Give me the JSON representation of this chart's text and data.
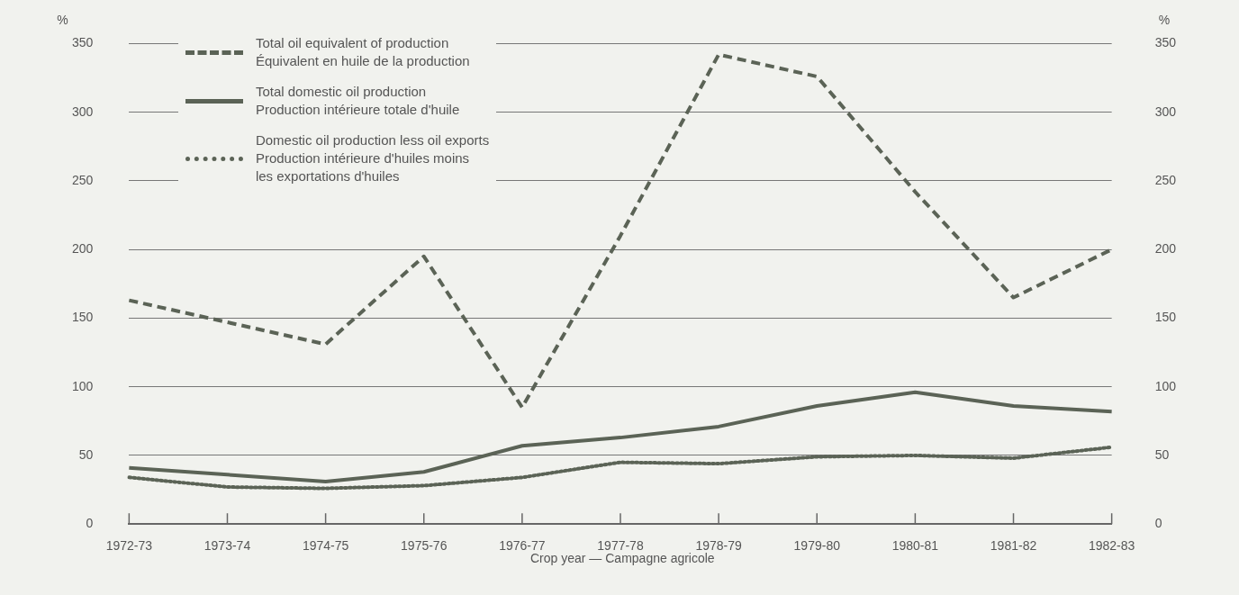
{
  "chart_data": {
    "type": "line",
    "xlabel": "Crop year — Campagne agricole",
    "ylabel": "%",
    "y2label": "%",
    "categories": [
      "1972-73",
      "1973-74",
      "1974-75",
      "1975-76",
      "1976-77",
      "1977-78",
      "1978-79",
      "1979-80",
      "1980-81",
      "1981-82",
      "1982-83"
    ],
    "series": [
      {
        "name": "Total oil equivalent of production\nÉquivalent en huile de la production",
        "color": "#5b6356",
        "line_style": "dashed",
        "values": [
          163,
          147,
          131,
          195,
          85,
          210,
          342,
          326,
          242,
          165,
          200
        ]
      },
      {
        "name": "Total domestic oil production\nProduction intérieure totale d'huile",
        "color": "#5b6356",
        "line_style": "solid",
        "values": [
          41,
          36,
          31,
          38,
          57,
          63,
          71,
          86,
          96,
          86,
          82
        ]
      },
      {
        "name": "Domestic oil production less oil exports\nProduction intérieure d'huiles moins\nles exportations d'huiles",
        "color": "#5b6356",
        "line_style": "dotted",
        "values": [
          34,
          27,
          26,
          28,
          34,
          45,
          44,
          49,
          50,
          48,
          56
        ]
      }
    ],
    "ylim": [
      0,
      350
    ],
    "yticks": [
      0,
      50,
      100,
      150,
      200,
      250,
      300,
      350
    ],
    "y2lim": [
      0,
      350
    ],
    "y2ticks": [
      0,
      50,
      100,
      150,
      200,
      250,
      300,
      350
    ],
    "grid": "y",
    "legend": "top left",
    "marker": "none"
  }
}
